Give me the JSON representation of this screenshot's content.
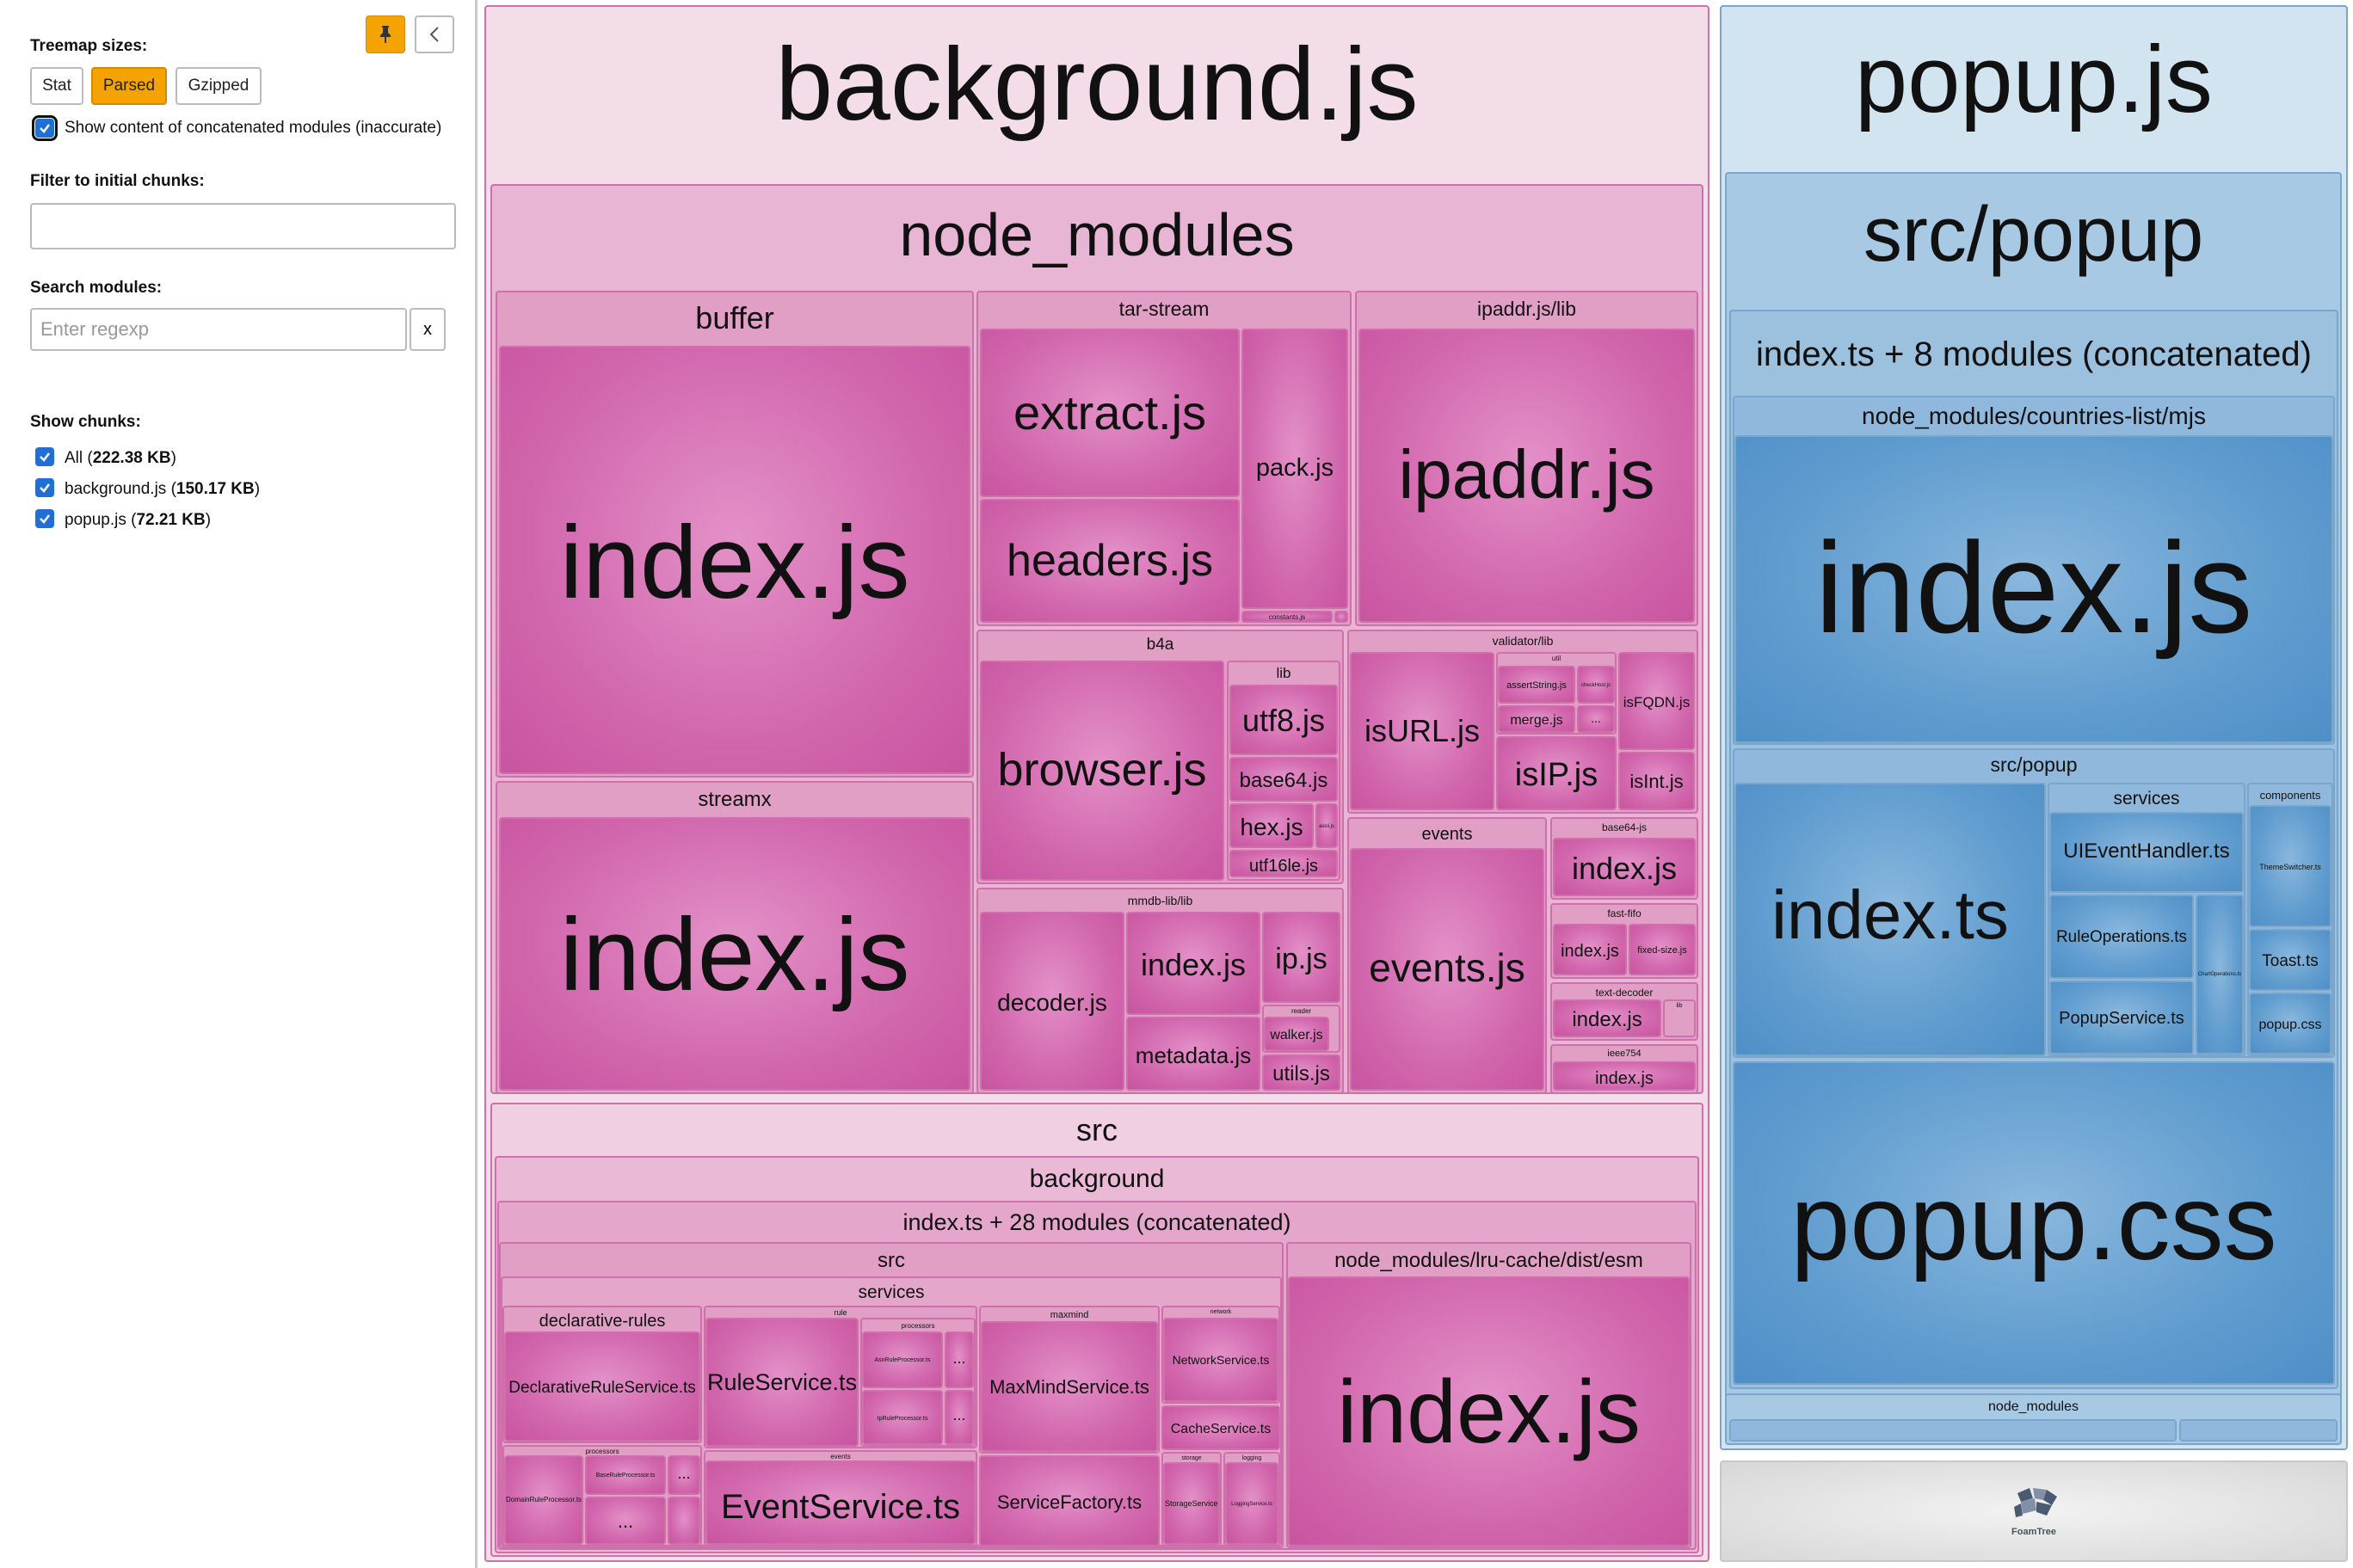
{
  "sidebar": {
    "treemap_sizes_label": "Treemap sizes:",
    "size_buttons": [
      "Stat",
      "Parsed",
      "Gzipped"
    ],
    "active_size": "Parsed",
    "concat_checkbox_label": "Show content of concatenated modules (inaccurate)",
    "filter_label": "Filter to initial chunks:",
    "filter_value": "",
    "search_label": "Search modules:",
    "search_placeholder": "Enter regexp",
    "search_clear": "x",
    "show_chunks_label": "Show chunks:",
    "chunks": [
      {
        "name": "All",
        "size": "222.38 KB"
      },
      {
        "name": "background.js",
        "size": "150.17 KB"
      },
      {
        "name": "popup.js",
        "size": "72.21 KB"
      }
    ]
  },
  "treemap": {
    "background": {
      "title": "background.js",
      "node_modules": "node_modules",
      "buffer": "buffer",
      "buffer_index": "index.js",
      "streamx": "streamx",
      "streamx_index": "index.js",
      "tar_stream": "tar-stream",
      "extract": "extract.js",
      "headers": "headers.js",
      "pack": "pack.js",
      "constants": "constants.js",
      "ipaddr_lib": "ipaddr.js/lib",
      "ipaddr": "ipaddr.js",
      "b4a": "b4a",
      "browser": "browser.js",
      "lib": "lib",
      "utf8": "utf8.js",
      "base64": "base64.js",
      "hex": "hex.js",
      "utf16le": "utf16le.js",
      "ascii": "ascii.js",
      "mmdb": "mmdb-lib/lib",
      "decoder": "decoder.js",
      "mmdb_index": "index.js",
      "ip": "ip.js",
      "metadata": "metadata.js",
      "reader": "reader",
      "walker": "walker.js",
      "utils": "utils.js",
      "validator": "validator/lib",
      "isURL": "isURL.js",
      "util": "util",
      "assertString": "assertString.js",
      "checkHost": "checkHost.js",
      "merge": "merge.js",
      "isFQDN": "isFQDN.js",
      "isIP": "isIP.js",
      "isInt": "isInt.js",
      "events_dir": "events",
      "events_js": "events.js",
      "base64js": "base64-js",
      "base64js_index": "index.js",
      "fast_fifo": "fast-fifo",
      "fast_fifo_index": "index.js",
      "fixed_size": "fixed-size.js",
      "text_decoder": "text-decoder",
      "text_decoder_index": "index.js",
      "lib_small": "lib",
      "ieee754": "ieee754",
      "ieee754_index": "index.js",
      "ellipsis": "...",
      "src": "src",
      "src_background": "background",
      "concat": "index.ts + 28 modules (concatenated)",
      "src_inner": "src",
      "services": "services",
      "declarative_rules": "declarative-rules",
      "declarative_service": "DeclarativeRuleService.ts",
      "processors": "processors",
      "domain_processor": "DomainRuleProcessor.ts",
      "base_processor": "BaseRuleProcessor.ts",
      "rule": "rule",
      "rule_service": "RuleService.ts",
      "processors2": "processors",
      "asn_processor": "AsnRuleProcessor.ts",
      "ip_processor": "IpRuleProcessor.ts",
      "events_small": "events",
      "event_service": "EventService.ts",
      "maxmind": "maxmind",
      "maxmind_service": "MaxMindService.ts",
      "service_factory": "ServiceFactory.ts",
      "network": "network",
      "network_service": "NetworkService.ts",
      "cache_service": "CacheService.ts",
      "storage": "storage",
      "storage_service": "StorageService.ts",
      "logging": "logging",
      "logging_service": "LoggingService.ts",
      "lru": "node_modules/lru-cache/dist/esm",
      "lru_index": "index.js"
    },
    "popup": {
      "title": "popup.js",
      "src_popup": "src/popup",
      "concat": "index.ts + 8 modules (concatenated)",
      "countries": "node_modules/countries-list/mjs",
      "countries_index": "index.js",
      "src_popup_inner": "src/popup",
      "index_ts": "index.ts",
      "services": "services",
      "ui_event": "UIEventHandler.ts",
      "rule_ops": "RuleOperations.ts",
      "popup_service": "PopupService.ts",
      "components": "components",
      "theme_switcher": "ThemeSwitcher.ts",
      "toast": "Toast.ts",
      "popup_css_small": "popup.css",
      "chart_ops": "ChartOperations.ts",
      "popup_css": "popup.css",
      "node_modules": "node_modules",
      "ellipsis": "..."
    },
    "foamtree": "FoamTree"
  }
}
